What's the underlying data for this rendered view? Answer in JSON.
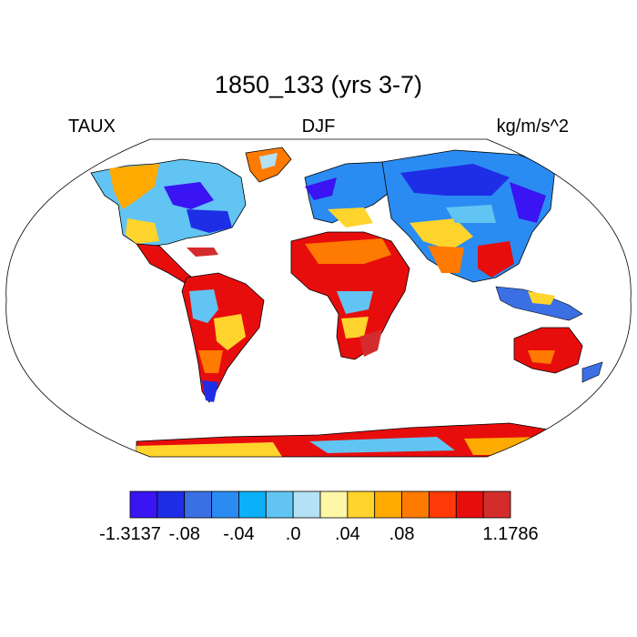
{
  "title": "1850_133 (yrs 3-7)",
  "left_label": "TAUX",
  "center_label": "DJF",
  "right_label": "kg/m/s^2",
  "colorbar": {
    "colors": [
      "#3a14f2",
      "#1e2ee6",
      "#3b6fe4",
      "#2a8cf2",
      "#0cb0f8",
      "#62c4f2",
      "#b4e2f4",
      "#fff7a8",
      "#ffd42c",
      "#ffaa00",
      "#ff7a00",
      "#ff3a08",
      "#e80d0d",
      "#d42c2c"
    ],
    "labels": [
      {
        "text": "-1.3137",
        "index": 0
      },
      {
        "text": "-.08",
        "index": 2
      },
      {
        "text": "-.04",
        "index": 4
      },
      {
        "text": ".0",
        "index": 6
      },
      {
        "text": ".04",
        "index": 8
      },
      {
        "text": ".08",
        "index": 10
      },
      {
        "text": "1.1786",
        "index": 14
      }
    ]
  }
}
